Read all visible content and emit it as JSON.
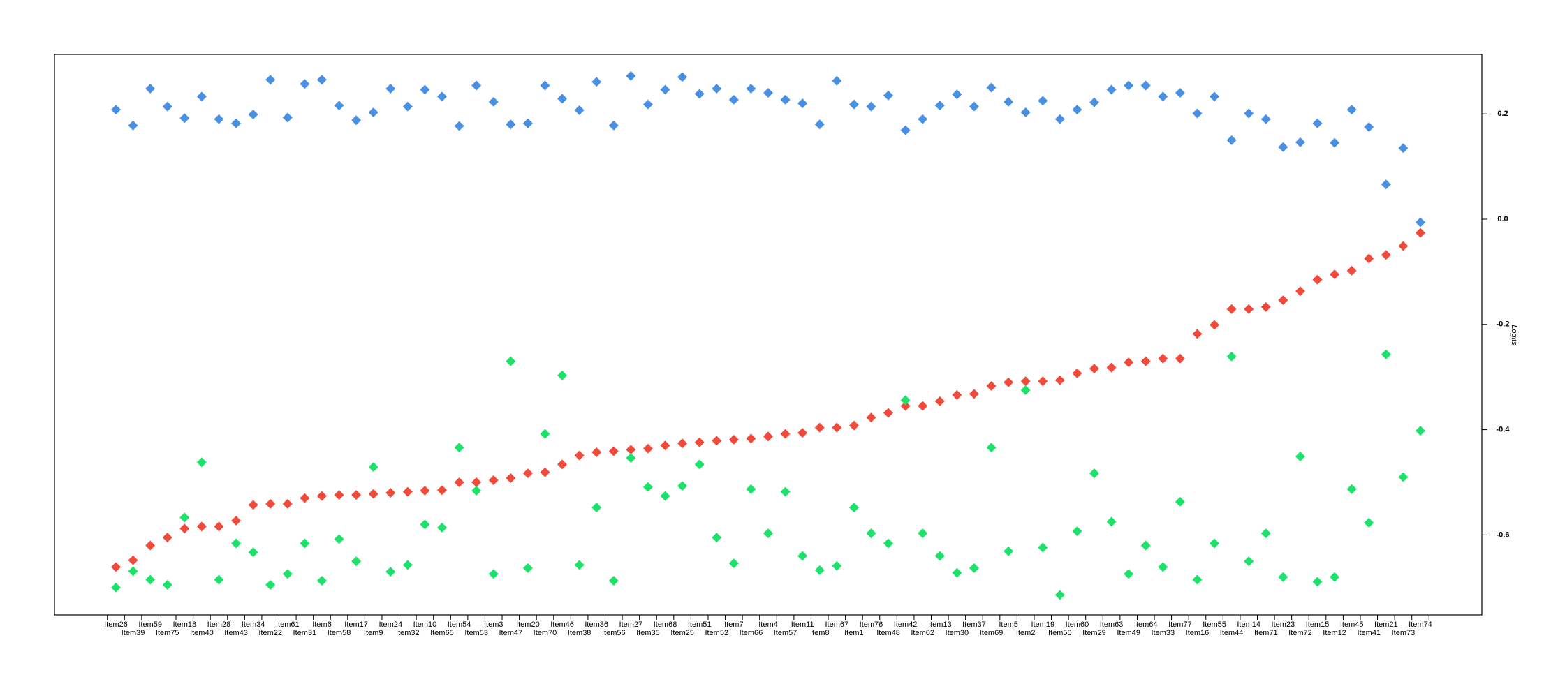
{
  "chart_data": {
    "type": "scatter",
    "y_label": "Logits",
    "y_axis_side": "right",
    "categories": [
      "Item26",
      "Item39",
      "Item59",
      "Item75",
      "Item18",
      "Item40",
      "Item28",
      "Item43",
      "Item34",
      "Item22",
      "Item61",
      "Item31",
      "Item6",
      "Item58",
      "Item17",
      "Item9",
      "Item24",
      "Item32",
      "Item10",
      "Item65",
      "Item54",
      "Item53",
      "Item3",
      "Item47",
      "Item20",
      "Item70",
      "Item46",
      "Item38",
      "Item36",
      "Item56",
      "Item27",
      "Item35",
      "Item68",
      "Item25",
      "Item51",
      "Item52",
      "Item7",
      "Item66",
      "Item4",
      "Item57",
      "Item11",
      "Item8",
      "Item67",
      "Item1",
      "Item76",
      "Item48",
      "Item42",
      "Item62",
      "Item13",
      "Item30",
      "Item37",
      "Item69",
      "Item5",
      "Item2",
      "Item19",
      "Item50",
      "Item60",
      "Item29",
      "Item63",
      "Item49",
      "Item64",
      "Item33",
      "Item77",
      "Item16",
      "Item55",
      "Item44",
      "Item14",
      "Item71",
      "Item23",
      "Item72",
      "Item15",
      "Item12",
      "Item45",
      "Item41",
      "Item21",
      "Item73",
      "Item74"
    ],
    "series": [
      {
        "color": "#4a90e2",
        "values": [
          0.208,
          0.178,
          0.248,
          0.214,
          0.192,
          0.233,
          0.19,
          0.182,
          0.199,
          0.265,
          0.193,
          0.257,
          0.265,
          0.216,
          0.188,
          0.203,
          0.248,
          0.214,
          0.246,
          0.233,
          0.177,
          0.254,
          0.223,
          0.18,
          0.182,
          0.254,
          0.229,
          0.207,
          0.261,
          0.178,
          0.272,
          0.218,
          0.246,
          0.27,
          0.238,
          0.248,
          0.227,
          0.248,
          0.24,
          0.227,
          0.22,
          0.18,
          0.263,
          0.218,
          0.214,
          0.235,
          0.169,
          0.19,
          0.216,
          0.237,
          0.214,
          0.25,
          0.223,
          0.203,
          0.225,
          0.19,
          0.208,
          0.222,
          0.246,
          0.254,
          0.254,
          0.233,
          0.24,
          0.201,
          0.233,
          0.15,
          0.201,
          0.19,
          0.137,
          0.146,
          0.182,
          0.145,
          0.208,
          0.175,
          0.066,
          0.135,
          -0.006
        ]
      },
      {
        "color": "#f04a3a",
        "values": [
          -0.661,
          -0.648,
          -0.62,
          -0.605,
          -0.588,
          -0.584,
          -0.584,
          -0.573,
          -0.543,
          -0.541,
          -0.541,
          -0.53,
          -0.526,
          -0.524,
          -0.524,
          -0.522,
          -0.52,
          -0.518,
          -0.516,
          -0.515,
          -0.5,
          -0.5,
          -0.496,
          -0.492,
          -0.483,
          -0.481,
          -0.466,
          -0.449,
          -0.443,
          -0.441,
          -0.438,
          -0.436,
          -0.43,
          -0.426,
          -0.424,
          -0.421,
          -0.419,
          -0.417,
          -0.413,
          -0.408,
          -0.406,
          -0.396,
          -0.396,
          -0.392,
          -0.377,
          -0.368,
          -0.355,
          -0.355,
          -0.346,
          -0.334,
          -0.332,
          -0.317,
          -0.31,
          -0.308,
          -0.308,
          -0.306,
          -0.293,
          -0.284,
          -0.282,
          -0.272,
          -0.27,
          -0.265,
          -0.265,
          -0.218,
          -0.201,
          -0.171,
          -0.171,
          -0.167,
          -0.154,
          -0.137,
          -0.115,
          -0.105,
          -0.098,
          -0.075,
          -0.068,
          -0.051,
          -0.026
        ]
      },
      {
        "color": "#1de26a",
        "values": [
          -0.7,
          -0.669,
          -0.685,
          -0.695,
          -0.567,
          -0.462,
          -0.685,
          -0.616,
          -0.633,
          -0.695,
          -0.674,
          -0.616,
          -0.687,
          -0.608,
          -0.65,
          -0.471,
          -0.67,
          -0.657,
          -0.58,
          -0.586,
          -0.434,
          -0.516,
          -0.674,
          -0.27,
          -0.663,
          -0.408,
          -0.297,
          -0.657,
          -0.548,
          -0.687,
          -0.454,
          -0.509,
          -0.526,
          -0.507,
          -0.466,
          -0.605,
          -0.654,
          -0.513,
          -0.597,
          -0.518,
          -0.64,
          -0.667,
          -0.659,
          -0.548,
          -0.597,
          -0.616,
          -0.344,
          -0.597,
          -0.64,
          -0.672,
          -0.663,
          -0.434,
          -0.631,
          -0.325,
          -0.624,
          -0.714,
          -0.593,
          -0.483,
          -0.575,
          -0.674,
          -0.62,
          -0.661,
          -0.537,
          -0.685,
          -0.616,
          -0.261,
          -0.65,
          -0.597,
          -0.68,
          -0.451,
          -0.689,
          -0.68,
          -0.513,
          -0.577,
          -0.257,
          -0.49,
          -0.402
        ]
      }
    ],
    "ylim": [
      -0.752,
      0.313
    ],
    "yticks": [
      0.2,
      {
        "value": 0,
        "label": "0.0"
      },
      -0.2,
      -0.4,
      -0.6
    ]
  }
}
